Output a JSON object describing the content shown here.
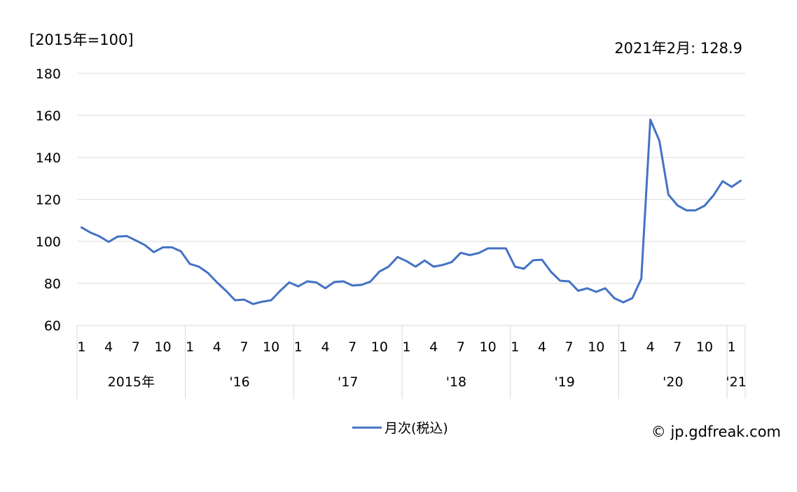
{
  "header": {
    "unit_label": "[2015年=100]",
    "latest_label": "2021年2月: 128.9"
  },
  "footer": {
    "copyright": "© jp.gdfreak.com"
  },
  "chart_data": {
    "type": "line",
    "ylim": [
      60,
      180
    ],
    "yticks": [
      60,
      80,
      100,
      120,
      140,
      160,
      180
    ],
    "grid": true,
    "legend_position": "bottom",
    "month_ticks": [
      "1",
      "4",
      "7",
      "10"
    ],
    "month_tick_last_year": [
      "1"
    ],
    "year_labels": [
      "2015年",
      "'16",
      "'17",
      "'18",
      "'19",
      "'20",
      "'21"
    ],
    "x_period": "2015-01 to 2021-02 (monthly)",
    "series": [
      {
        "name": "月次(税込)",
        "color": "#4472C4",
        "values": [
          106.7,
          104.2,
          102.4,
          99.8,
          102.3,
          102.6,
          100.5,
          98.3,
          94.9,
          97.2,
          97.2,
          95.3,
          89.3,
          88.0,
          85.0,
          80.5,
          76.5,
          72.0,
          72.3,
          70.2,
          71.3,
          72.0,
          76.5,
          80.5,
          78.6,
          81.0,
          80.5,
          77.7,
          80.7,
          81.0,
          79.0,
          79.3,
          80.9,
          85.7,
          88.0,
          92.6,
          90.6,
          88.0,
          90.9,
          88.0,
          88.8,
          90.2,
          94.6,
          93.5,
          94.5,
          96.7,
          96.7,
          96.7,
          88.0,
          87.0,
          91.0,
          91.3,
          85.5,
          81.3,
          81.0,
          76.5,
          77.7,
          76.0,
          77.7,
          73.0,
          71.0,
          73.0,
          82.3,
          158.0,
          148.0,
          122.3,
          117.2,
          114.8,
          114.8,
          117.0,
          122.0,
          128.7,
          126.0,
          128.9
        ]
      }
    ]
  }
}
